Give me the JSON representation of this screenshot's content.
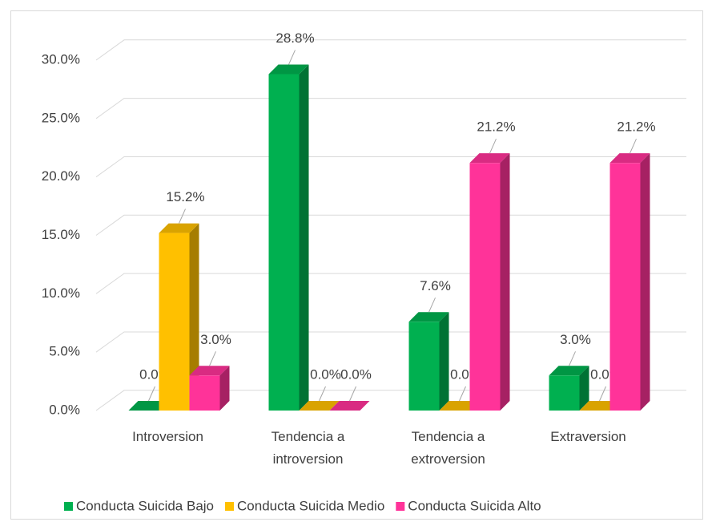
{
  "chart_data": {
    "type": "bar3d",
    "categories": [
      "Introversion",
      "Tendencia a introversion",
      "Tendencia a extroversion",
      "Extraversion"
    ],
    "series": [
      {
        "name": "Conducta Suicida Bajo",
        "color": "#00b050",
        "values": [
          0.0,
          28.8,
          7.6,
          3.0
        ],
        "value_labels": [
          "0.0%",
          "28.8%",
          "7.6%",
          "3.0%"
        ]
      },
      {
        "name": "Conducta Suicida Medio",
        "color": "#ffc000",
        "values": [
          15.2,
          0.0,
          0.0,
          0.0
        ],
        "value_labels": [
          "15.2%",
          "0.0%",
          "0.0%",
          "0.0%"
        ]
      },
      {
        "name": "Conducta Suicida Alto",
        "color": "#ff3399",
        "values": [
          3.0,
          0.0,
          21.2,
          21.2
        ],
        "value_labels": [
          "3.0%",
          "0.0%",
          "21.2%",
          "21.2%"
        ]
      }
    ],
    "ylim": [
      0,
      30
    ],
    "yticks": [
      {
        "value": 0,
        "label": "0.0%"
      },
      {
        "value": 5,
        "label": "5.0%"
      },
      {
        "value": 10,
        "label": "10.0%"
      },
      {
        "value": 15,
        "label": "15.0%"
      },
      {
        "value": 20,
        "label": "20.0%"
      },
      {
        "value": 25,
        "label": "25.0%"
      },
      {
        "value": 30,
        "label": "30.0%"
      }
    ],
    "grid": true,
    "legend": "bottom"
  }
}
